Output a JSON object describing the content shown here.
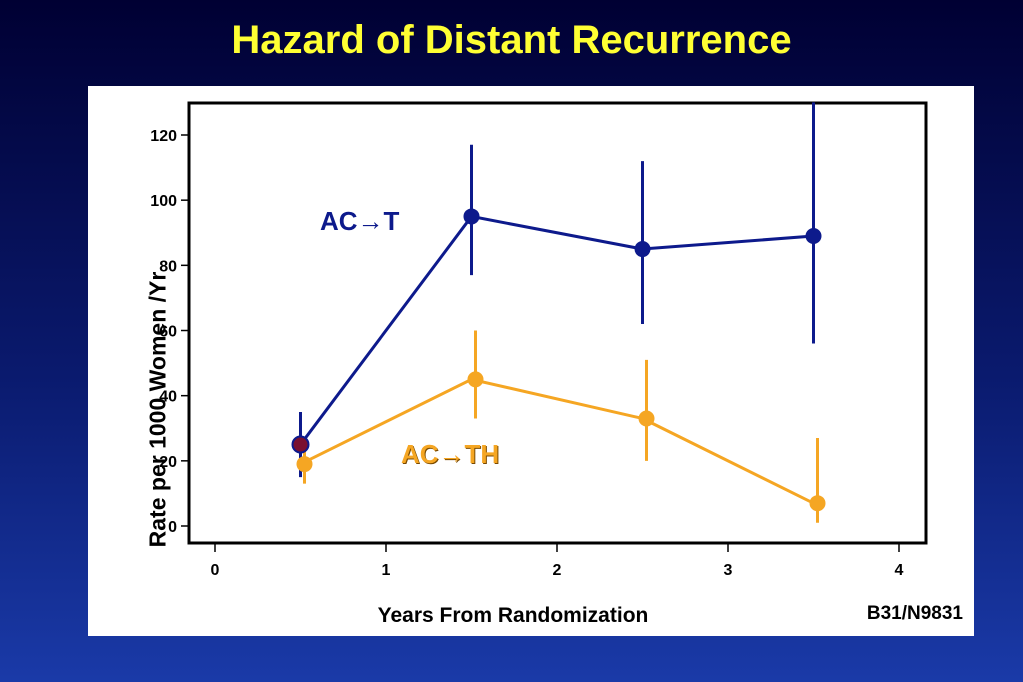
{
  "title": "Hazard of Distant Recurrence",
  "source_note": "B31/N9831",
  "chart_data": {
    "type": "line",
    "xlabel": "Years From Randomization",
    "ylabel": "Rate per 1000 Women /Yr",
    "xlim": [
      0,
      4
    ],
    "ylim": [
      0,
      130
    ],
    "x_ticks": [
      "0",
      "1",
      "2",
      "3",
      "4"
    ],
    "y_ticks": [
      "0",
      "20",
      "40",
      "60",
      "80",
      "100",
      "120"
    ],
    "grid": false,
    "series": [
      {
        "name": "AC→T",
        "color": "#0d1a8c",
        "x": [
          0.5,
          1.5,
          2.5,
          3.5
        ],
        "y": [
          25,
          95,
          85,
          89
        ],
        "lower": [
          15,
          77,
          62,
          56
        ],
        "upper": [
          35,
          117,
          112,
          130
        ]
      },
      {
        "name": "AC→TH",
        "color": "#f5a623",
        "x": [
          0.5,
          1.5,
          2.5,
          3.5
        ],
        "y": [
          19,
          45,
          33,
          7
        ],
        "lower": [
          13,
          33,
          20,
          1
        ],
        "upper": [
          25,
          60,
          51,
          27
        ]
      }
    ]
  }
}
